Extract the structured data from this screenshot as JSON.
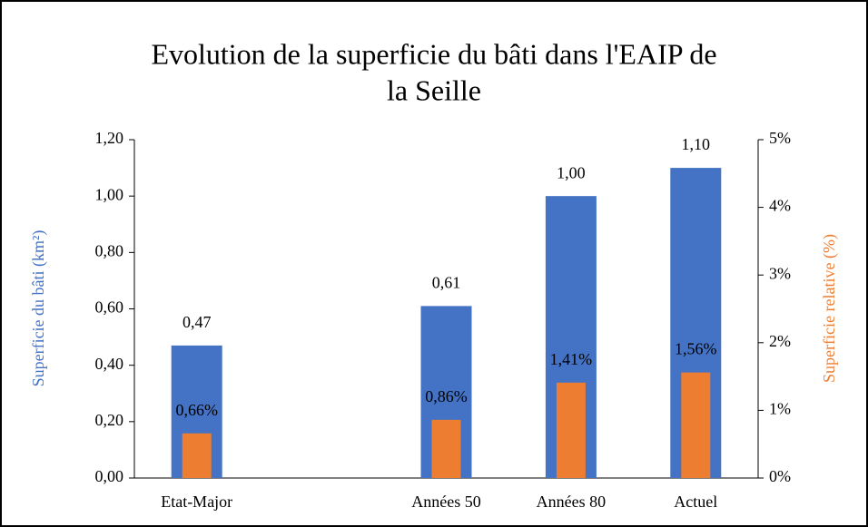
{
  "chart_data": {
    "type": "bar",
    "title": [
      "Evolution de la superficie du bâti dans l'EAIP de",
      "la Seille"
    ],
    "categories": [
      "Etat-Major",
      null,
      "Années 50",
      "Années 80",
      "Actuel"
    ],
    "ylabel": "Superficie du bâti (km²)",
    "y2label": "Superficie relative (%)",
    "ylim": [
      0,
      1.2
    ],
    "yticks": [
      {
        "value": 0,
        "label": "0,00"
      },
      {
        "value": 0.2,
        "label": "0,20"
      },
      {
        "value": 0.4,
        "label": "0,40"
      },
      {
        "value": 0.6,
        "label": "0,60"
      },
      {
        "value": 0.8,
        "label": "0,80"
      },
      {
        "value": 1.0,
        "label": "1,00"
      },
      {
        "value": 1.2,
        "label": "1,20"
      }
    ],
    "y2lim": [
      0,
      5
    ],
    "y2ticks": [
      {
        "value": 0,
        "label": "0%"
      },
      {
        "value": 1,
        "label": "1%"
      },
      {
        "value": 2,
        "label": "2%"
      },
      {
        "value": 3,
        "label": "3%"
      },
      {
        "value": 4,
        "label": "4%"
      },
      {
        "value": 5,
        "label": "5%"
      }
    ],
    "series": [
      {
        "color": "#4472c4",
        "values": [
          0.47,
          null,
          0.61,
          1.0,
          1.1
        ],
        "value_labels": [
          "0,47",
          null,
          "0,61",
          "1,00",
          "1,10"
        ]
      },
      {
        "color": "#ed7d31",
        "axis": "y2",
        "values": [
          0.66,
          null,
          0.86,
          1.41,
          1.56
        ],
        "value_labels": [
          "0,66%",
          null,
          "0,86%",
          "1,41%",
          "1,56%"
        ]
      }
    ]
  }
}
